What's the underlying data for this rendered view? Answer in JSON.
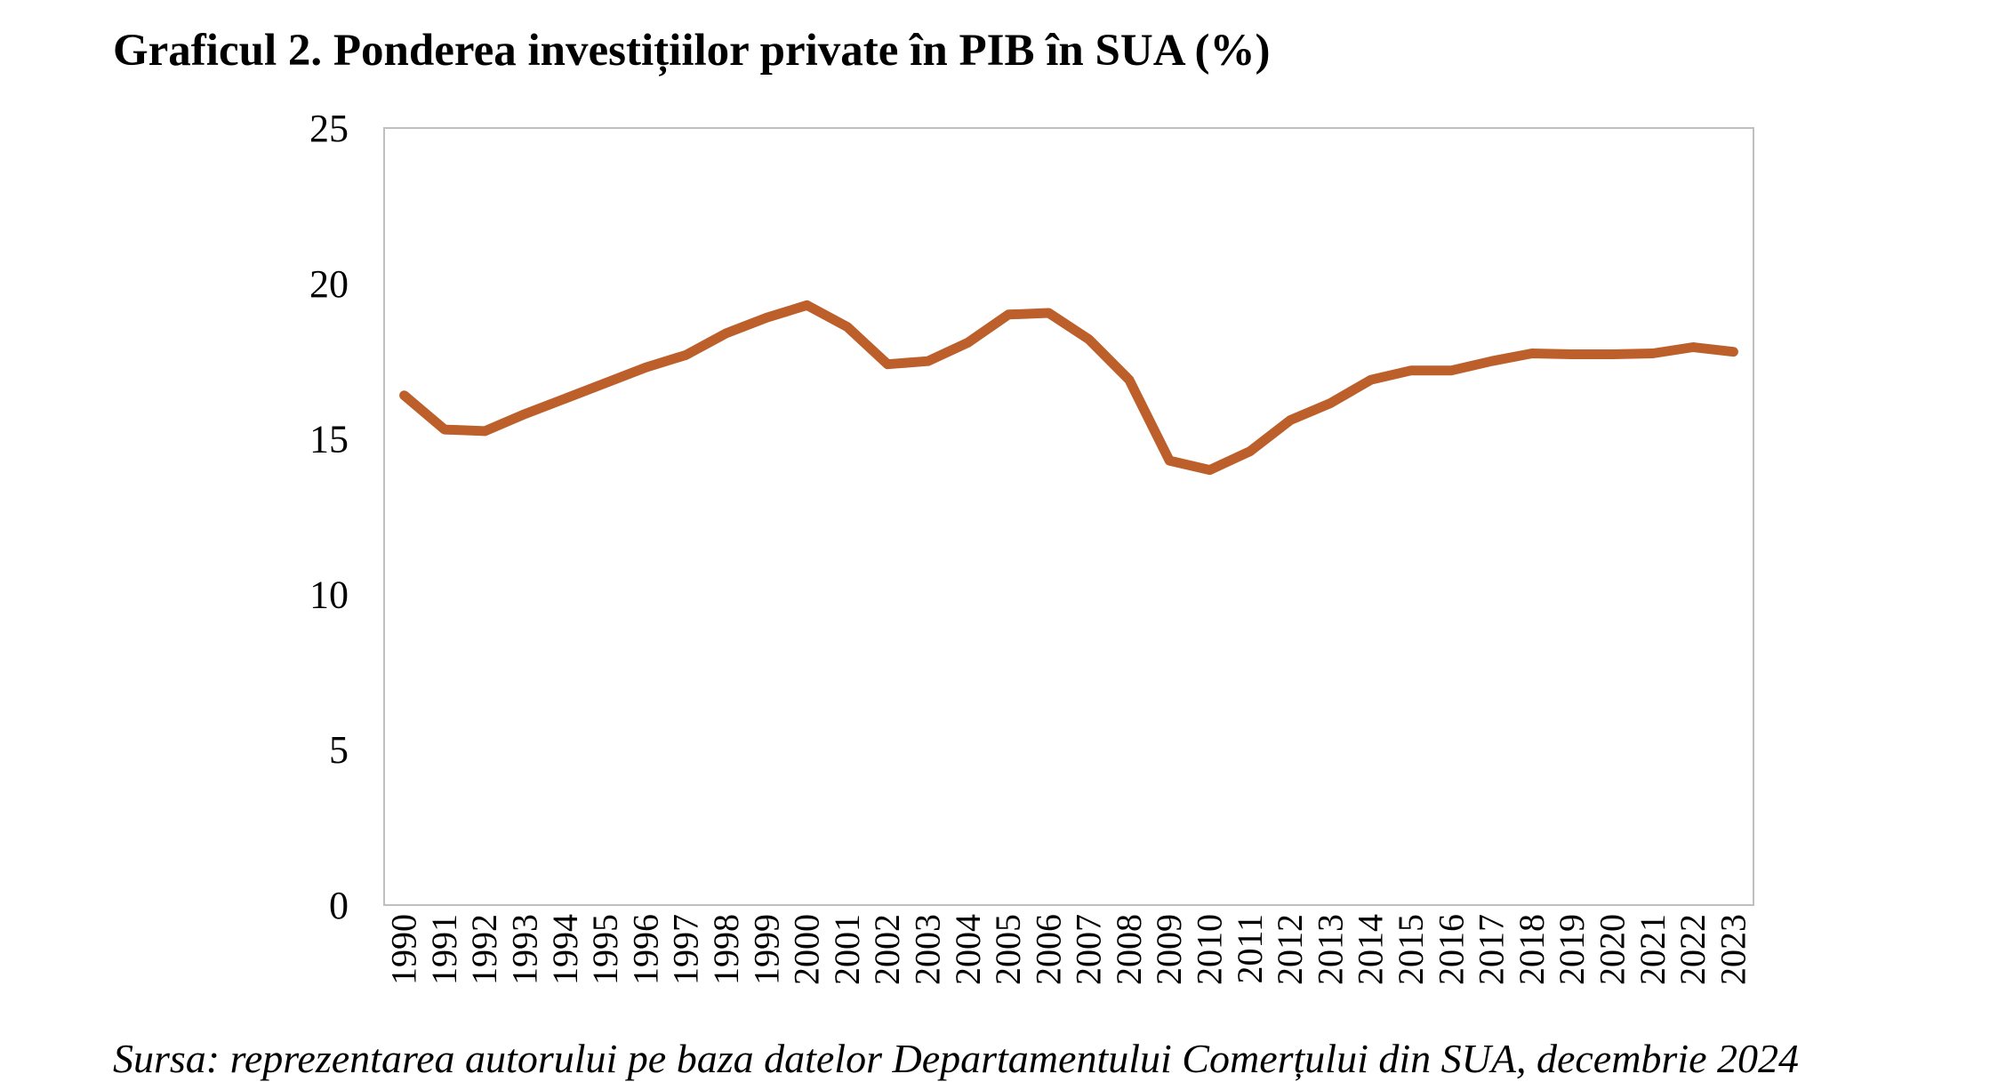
{
  "chart_data": {
    "type": "line",
    "title": "Graficul 2. Ponderea investițiilor private în PIB în SUA (%)",
    "source": "Sursa: reprezentarea autorului pe baza datelor Departamentului Comerțului din SUA, decembrie 2024",
    "xlabel": "",
    "ylabel": "",
    "ylim": [
      0,
      25
    ],
    "yticks": [
      "0",
      "5",
      "10",
      "15",
      "20",
      "25"
    ],
    "grid": false,
    "legend": "none",
    "series_color": "#BC5F2A",
    "categories": [
      "1990",
      "1991",
      "1992",
      "1993",
      "1994",
      "1995",
      "1996",
      "1997",
      "1998",
      "1999",
      "2000",
      "2001",
      "2002",
      "2003",
      "2004",
      "2005",
      "2006",
      "2007",
      "2008",
      "2009",
      "2010",
      "2011",
      "2012",
      "2013",
      "2014",
      "2015",
      "2016",
      "2017",
      "2018",
      "2019",
      "2020",
      "2021",
      "2022",
      "2023"
    ],
    "series": [
      {
        "values": [
          16.4,
          15.3,
          15.25,
          15.8,
          16.3,
          16.8,
          17.3,
          17.7,
          18.4,
          18.9,
          19.3,
          18.6,
          17.4,
          17.5,
          18.1,
          19.0,
          19.05,
          18.2,
          16.9,
          14.3,
          14.0,
          14.6,
          15.6,
          16.15,
          16.9,
          17.2,
          17.2,
          17.5,
          17.75,
          17.72,
          17.72,
          17.75,
          17.95,
          17.8
        ]
      }
    ]
  }
}
